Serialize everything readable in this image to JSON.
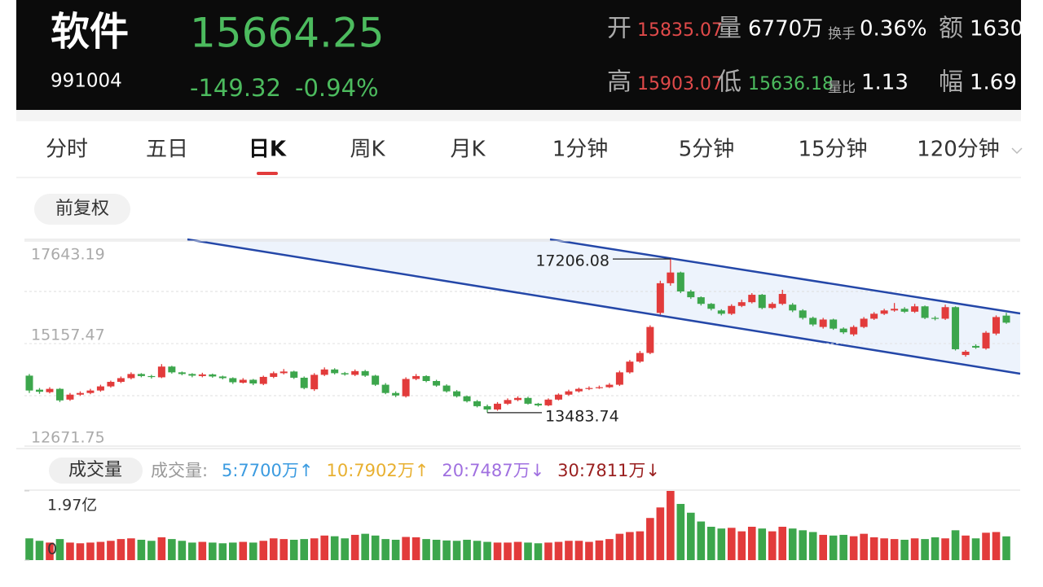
{
  "header": {
    "name": "软件",
    "code": "991004",
    "price": "15664.25",
    "change": "-149.32",
    "change_pct": "-0.94%",
    "stats": [
      [
        {
          "label": "开",
          "value": "15835.07"
        },
        {
          "label": "量",
          "value": "6770万"
        },
        {
          "label": "换手",
          "value": "0.36%"
        },
        {
          "label": "额",
          "value": "1630"
        }
      ],
      [
        {
          "label": "高",
          "value": "15903.07"
        },
        {
          "label": "低",
          "value": "15636.18"
        },
        {
          "label": "量比",
          "value": "1.13"
        },
        {
          "label": "幅",
          "value": "1.69"
        }
      ]
    ]
  },
  "tabs": [
    "分时",
    "五日",
    "日K",
    "周K",
    "月K",
    "1分钟",
    "5分钟",
    "15分钟",
    "120分钟"
  ],
  "active_tab": 2,
  "adjust": "前复权",
  "chart_data": [
    {
      "type": "candlestick",
      "ylim": [
        12671.75,
        17643.19
      ],
      "yticks": [
        17643.19,
        15157.47,
        12671.75
      ],
      "up_color": "#e23b3b",
      "down_color": "#3ca64c",
      "open": [
        14380,
        14040,
        13980,
        14060,
        13800,
        13920,
        13960,
        14020,
        14120,
        14230,
        14320,
        14420,
        14370,
        14340,
        14600,
        14460,
        14420,
        14370,
        14410,
        14360,
        14320,
        14210,
        14280,
        14180,
        14350,
        14440,
        14480,
        14330,
        14050,
        14400,
        14530,
        14440,
        14400,
        14490,
        14380,
        14160,
        13960,
        13880,
        14300,
        14370,
        14250,
        14140,
        14000,
        13880,
        13760,
        13640,
        13560,
        13700,
        13790,
        13840,
        13700,
        13660,
        13800,
        13920,
        14000,
        14060,
        14080,
        14100,
        14160,
        14460,
        14720,
        14930,
        15900,
        16620,
        16880,
        16420,
        16280,
        16120,
        15960,
        15880,
        16070,
        16160,
        16340,
        16020,
        16120,
        16100,
        15960,
        15780,
        15560,
        15740,
        15520,
        15380,
        15560,
        15760,
        15880,
        15960,
        16000,
        15930,
        16060,
        15780,
        15760,
        16040,
        14880,
        15100,
        15040,
        15400,
        15835.07
      ],
      "close": [
        14020,
        13990,
        14060,
        13780,
        13920,
        13960,
        14020,
        14120,
        14230,
        14320,
        14420,
        14370,
        14350,
        14600,
        14460,
        14420,
        14380,
        14410,
        14360,
        14320,
        14220,
        14280,
        14190,
        14350,
        14440,
        14480,
        14330,
        14080,
        14400,
        14530,
        14440,
        14410,
        14490,
        14380,
        14160,
        13960,
        13900,
        14300,
        14370,
        14250,
        14140,
        14000,
        13880,
        13760,
        13640,
        13560,
        13700,
        13790,
        13840,
        13700,
        13660,
        13800,
        13920,
        14000,
        14060,
        14080,
        14100,
        14160,
        14460,
        14720,
        14930,
        15560,
        16620,
        16880,
        16420,
        16280,
        16120,
        16000,
        15880,
        16070,
        16160,
        16340,
        16020,
        16120,
        16360,
        15960,
        15780,
        15620,
        15740,
        15520,
        15430,
        15560,
        15760,
        15880,
        15960,
        16000,
        15930,
        16060,
        15780,
        15760,
        16040,
        15020,
        14960,
        15060,
        15420,
        15800,
        15664.25
      ],
      "high": [
        14420,
        14080,
        14100,
        14080,
        13960,
        14000,
        14060,
        14160,
        14260,
        14360,
        14460,
        14440,
        14400,
        14660,
        14620,
        14480,
        14440,
        14450,
        14430,
        14380,
        14340,
        14320,
        14300,
        14380,
        14480,
        14540,
        14500,
        14360,
        14440,
        14580,
        14560,
        14470,
        14530,
        14520,
        14400,
        14200,
        14000,
        14340,
        14420,
        14390,
        14280,
        14170,
        14030,
        13900,
        13790,
        13680,
        13740,
        13830,
        13880,
        13870,
        13720,
        13830,
        13950,
        14040,
        14090,
        14120,
        14140,
        14200,
        14500,
        14760,
        14980,
        15600,
        16680,
        17206.08,
        16900,
        16460,
        16300,
        16140,
        15990,
        16110,
        16220,
        16380,
        16360,
        16160,
        16460,
        16140,
        15990,
        15810,
        15780,
        15760,
        15550,
        15600,
        15800,
        15920,
        16000,
        16140,
        16040,
        16120,
        16080,
        15820,
        16100,
        16060,
        15000,
        15140,
        15460,
        15840,
        15903.07
      ],
      "low": [
        13960,
        13940,
        13950,
        13740,
        13770,
        13890,
        13930,
        13990,
        14090,
        14200,
        14290,
        14340,
        14310,
        14320,
        14430,
        14390,
        14340,
        14340,
        14330,
        14290,
        14180,
        14190,
        14150,
        14150,
        14320,
        14410,
        14300,
        14050,
        14010,
        14370,
        14410,
        14380,
        14370,
        14350,
        14130,
        13930,
        13860,
        13850,
        14270,
        14220,
        14110,
        13970,
        13850,
        13730,
        13610,
        13483.74,
        13530,
        13670,
        13760,
        13680,
        13630,
        13640,
        13780,
        13890,
        13970,
        14030,
        14060,
        14080,
        14130,
        14430,
        14690,
        14900,
        15860,
        16560,
        16380,
        16240,
        16080,
        15960,
        15840,
        15850,
        16040,
        16130,
        15990,
        15990,
        16090,
        15920,
        15740,
        15580,
        15520,
        15490,
        15390,
        15340,
        15530,
        15730,
        15850,
        15930,
        15900,
        15900,
        15750,
        15720,
        15730,
        14990,
        14840,
        15030,
        15010,
        15360,
        15636.18
      ]
    },
    {
      "type": "bar",
      "title": "成交量",
      "ylim": [
        0,
        1.97
      ],
      "yticks": [
        {
          "value": 1.97,
          "label": "1.97亿"
        },
        0
      ],
      "legend_title": "成交量:",
      "legend": [
        {
          "label": "5:7700万↑",
          "color": "#3b9be0"
        },
        {
          "label": "10:7902万↑",
          "color": "#e8b030"
        },
        {
          "label": "20:7487万↓",
          "color": "#a070e0"
        },
        {
          "label": "30:7811万↓",
          "color": "#9a2020"
        }
      ],
      "values": [
        0.62,
        0.55,
        0.5,
        0.6,
        0.5,
        0.48,
        0.5,
        0.52,
        0.55,
        0.6,
        0.62,
        0.58,
        0.55,
        0.65,
        0.6,
        0.55,
        0.5,
        0.52,
        0.5,
        0.48,
        0.5,
        0.52,
        0.5,
        0.55,
        0.62,
        0.6,
        0.58,
        0.6,
        0.62,
        0.7,
        0.68,
        0.62,
        0.72,
        0.75,
        0.7,
        0.6,
        0.58,
        0.66,
        0.65,
        0.6,
        0.58,
        0.56,
        0.55,
        0.58,
        0.55,
        0.52,
        0.5,
        0.5,
        0.52,
        0.5,
        0.48,
        0.5,
        0.52,
        0.55,
        0.55,
        0.52,
        0.56,
        0.6,
        0.75,
        0.8,
        0.82,
        1.2,
        1.5,
        1.97,
        1.6,
        1.35,
        1.1,
        0.95,
        0.9,
        0.92,
        0.82,
        0.95,
        0.9,
        0.82,
        0.95,
        0.9,
        0.85,
        0.8,
        0.72,
        0.7,
        0.72,
        0.68,
        0.75,
        0.65,
        0.62,
        0.6,
        0.58,
        0.62,
        0.6,
        0.65,
        0.62,
        0.85,
        0.7,
        0.62,
        0.78,
        0.8,
        0.677
      ]
    }
  ]
}
